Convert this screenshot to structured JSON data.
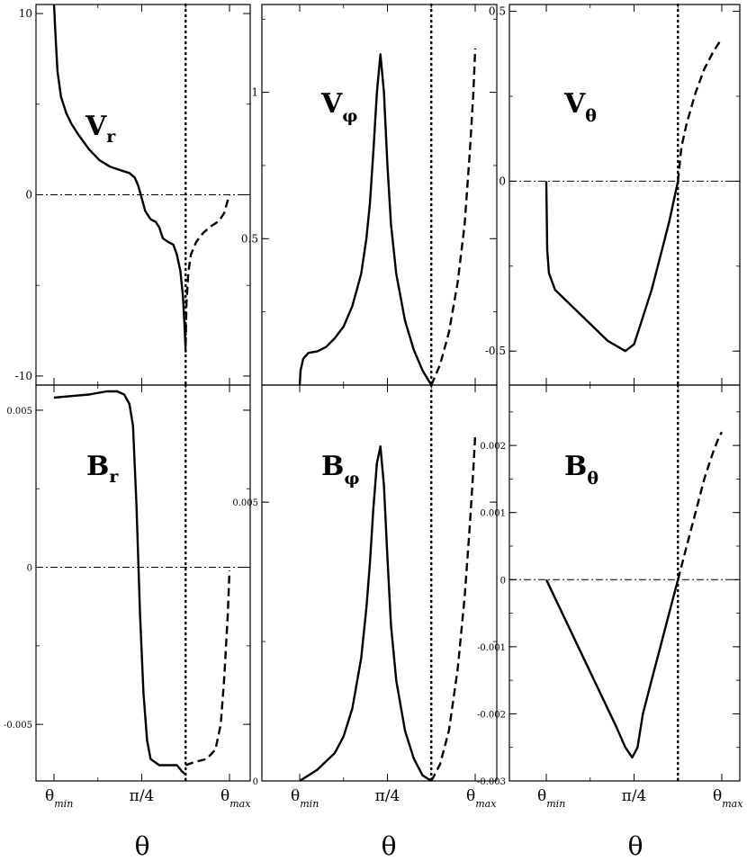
{
  "chart_data": [
    {
      "type": "line",
      "panel": "Vr",
      "label": "V",
      "label_sub": "r",
      "ylim": [
        -10.5,
        10.5
      ],
      "yticks": [
        {
          "v": 10,
          "t": "10"
        },
        {
          "v": 0,
          "t": "0"
        },
        {
          "v": -10,
          "t": "-10"
        }
      ],
      "ref_line": 0,
      "series": [
        {
          "style": "solid",
          "points": [
            [
              0.0,
              10.5
            ],
            [
              0.01,
              8.5
            ],
            [
              0.02,
              6.8
            ],
            [
              0.04,
              5.4
            ],
            [
              0.07,
              4.5
            ],
            [
              0.1,
              3.9
            ],
            [
              0.14,
              3.3
            ],
            [
              0.2,
              2.5
            ],
            [
              0.26,
              1.9
            ],
            [
              0.32,
              1.55
            ],
            [
              0.38,
              1.35
            ],
            [
              0.43,
              1.2
            ],
            [
              0.46,
              0.95
            ],
            [
              0.48,
              0.5
            ],
            [
              0.5,
              -0.2
            ],
            [
              0.52,
              -0.9
            ],
            [
              0.55,
              -1.35
            ],
            [
              0.58,
              -1.5
            ],
            [
              0.6,
              -1.8
            ],
            [
              0.62,
              -2.4
            ],
            [
              0.65,
              -2.6
            ],
            [
              0.68,
              -2.75
            ],
            [
              0.7,
              -3.3
            ],
            [
              0.72,
              -4.2
            ],
            [
              0.735,
              -5.6
            ],
            [
              0.745,
              -7.5
            ],
            [
              0.75,
              -8.7
            ]
          ]
        },
        {
          "style": "dashed",
          "points": [
            [
              0.75,
              -8.3
            ],
            [
              0.755,
              -6.0
            ],
            [
              0.765,
              -4.3
            ],
            [
              0.78,
              -3.3
            ],
            [
              0.81,
              -2.6
            ],
            [
              0.85,
              -2.1
            ],
            [
              0.9,
              -1.7
            ],
            [
              0.94,
              -1.45
            ],
            [
              0.97,
              -1.0
            ],
            [
              0.99,
              -0.3
            ],
            [
              1.0,
              0.0
            ]
          ]
        }
      ]
    },
    {
      "type": "line",
      "panel": "Vphi",
      "label": "V",
      "label_sub": "φ",
      "ylim": [
        0,
        1.3
      ],
      "yticks": [
        {
          "v": 1,
          "t": "1"
        },
        {
          "v": 0.5,
          "t": "0.5"
        }
      ],
      "ref_line": null,
      "series": [
        {
          "style": "solid",
          "points": [
            [
              0.0,
              0.0
            ],
            [
              0.005,
              0.05
            ],
            [
              0.02,
              0.09
            ],
            [
              0.05,
              0.11
            ],
            [
              0.1,
              0.115
            ],
            [
              0.15,
              0.13
            ],
            [
              0.2,
              0.16
            ],
            [
              0.25,
              0.2
            ],
            [
              0.3,
              0.27
            ],
            [
              0.35,
              0.38
            ],
            [
              0.38,
              0.5
            ],
            [
              0.4,
              0.62
            ],
            [
              0.42,
              0.8
            ],
            [
              0.44,
              1.0
            ],
            [
              0.46,
              1.13
            ],
            [
              0.48,
              1.0
            ],
            [
              0.5,
              0.75
            ],
            [
              0.52,
              0.55
            ],
            [
              0.55,
              0.38
            ],
            [
              0.6,
              0.22
            ],
            [
              0.65,
              0.12
            ],
            [
              0.7,
              0.05
            ],
            [
              0.75,
              0.0
            ]
          ]
        },
        {
          "style": "dashed",
          "points": [
            [
              0.75,
              0.0
            ],
            [
              0.8,
              0.07
            ],
            [
              0.85,
              0.18
            ],
            [
              0.9,
              0.35
            ],
            [
              0.94,
              0.55
            ],
            [
              0.97,
              0.8
            ],
            [
              0.99,
              1.0
            ],
            [
              1.0,
              1.15
            ]
          ]
        }
      ]
    },
    {
      "type": "line",
      "panel": "Vtheta",
      "label": "V",
      "label_sub": "θ",
      "ylim": [
        -0.6,
        0.52
      ],
      "yticks": [
        {
          "v": 0.5,
          "t": "0.5"
        },
        {
          "v": 0,
          "t": "0"
        },
        {
          "v": -0.5,
          "t": "-0.5"
        }
      ],
      "ref_line": 0,
      "series": [
        {
          "style": "solid",
          "points": [
            [
              0.0,
              0.0
            ],
            [
              0.005,
              -0.2
            ],
            [
              0.015,
              -0.27
            ],
            [
              0.05,
              -0.32
            ],
            [
              0.15,
              -0.37
            ],
            [
              0.25,
              -0.42
            ],
            [
              0.35,
              -0.47
            ],
            [
              0.45,
              -0.5
            ],
            [
              0.5,
              -0.48
            ],
            [
              0.55,
              -0.4
            ],
            [
              0.6,
              -0.32
            ],
            [
              0.65,
              -0.22
            ],
            [
              0.7,
              -0.12
            ],
            [
              0.75,
              0.0
            ]
          ]
        },
        {
          "style": "dashed",
          "points": [
            [
              0.75,
              0.0
            ],
            [
              0.77,
              0.1
            ],
            [
              0.8,
              0.17
            ],
            [
              0.85,
              0.26
            ],
            [
              0.9,
              0.33
            ],
            [
              0.95,
              0.38
            ],
            [
              1.0,
              0.42
            ]
          ]
        }
      ]
    },
    {
      "type": "line",
      "panel": "Br",
      "label": "B",
      "label_sub": "r",
      "ylim": [
        -0.0068,
        0.0058
      ],
      "yticks": [
        {
          "v": 0.005,
          "t": "0.005"
        },
        {
          "v": 0,
          "t": "0"
        },
        {
          "v": -0.005,
          "t": "-0.005"
        }
      ],
      "ref_line": 0,
      "series": [
        {
          "style": "solid",
          "points": [
            [
              0.0,
              0.0054
            ],
            [
              0.1,
              0.00545
            ],
            [
              0.2,
              0.0055
            ],
            [
              0.3,
              0.0056
            ],
            [
              0.36,
              0.0056
            ],
            [
              0.4,
              0.0055
            ],
            [
              0.43,
              0.0052
            ],
            [
              0.45,
              0.0045
            ],
            [
              0.47,
              0.002
            ],
            [
              0.49,
              -0.0015
            ],
            [
              0.51,
              -0.004
            ],
            [
              0.53,
              -0.0055
            ],
            [
              0.55,
              -0.0061
            ],
            [
              0.6,
              -0.0063
            ],
            [
              0.65,
              -0.0063
            ],
            [
              0.7,
              -0.0063
            ],
            [
              0.73,
              -0.0065
            ],
            [
              0.75,
              -0.0066
            ]
          ]
        },
        {
          "style": "dashed",
          "points": [
            [
              0.75,
              -0.0063
            ],
            [
              0.8,
              -0.0062
            ],
            [
              0.87,
              -0.0061
            ],
            [
              0.92,
              -0.0058
            ],
            [
              0.95,
              -0.005
            ],
            [
              0.97,
              -0.0035
            ],
            [
              0.99,
              -0.0015
            ],
            [
              1.0,
              -0.0001
            ]
          ]
        }
      ]
    },
    {
      "type": "line",
      "panel": "Bphi",
      "label": "B",
      "label_sub": "φ",
      "ylim": [
        0,
        0.0071
      ],
      "yticks": [
        {
          "v": 0.005,
          "t": "0.005"
        },
        {
          "v": 0,
          "t": "0"
        }
      ],
      "ref_line": null,
      "series": [
        {
          "style": "solid",
          "points": [
            [
              0.0,
              0.0
            ],
            [
              0.05,
              0.0001
            ],
            [
              0.1,
              0.0002
            ],
            [
              0.15,
              0.00035
            ],
            [
              0.2,
              0.0005
            ],
            [
              0.25,
              0.0008
            ],
            [
              0.3,
              0.0013
            ],
            [
              0.35,
              0.0022
            ],
            [
              0.38,
              0.0031
            ],
            [
              0.4,
              0.0039
            ],
            [
              0.42,
              0.0049
            ],
            [
              0.44,
              0.0057
            ],
            [
              0.46,
              0.006
            ],
            [
              0.48,
              0.0053
            ],
            [
              0.5,
              0.004
            ],
            [
              0.52,
              0.0028
            ],
            [
              0.55,
              0.0018
            ],
            [
              0.6,
              0.0009
            ],
            [
              0.65,
              0.0004
            ],
            [
              0.7,
              0.0001
            ],
            [
              0.75,
              0.0
            ]
          ]
        },
        {
          "style": "dashed",
          "points": [
            [
              0.75,
              0.0
            ],
            [
              0.8,
              0.0003
            ],
            [
              0.85,
              0.0009
            ],
            [
              0.9,
              0.002
            ],
            [
              0.94,
              0.0033
            ],
            [
              0.97,
              0.0046
            ],
            [
              0.99,
              0.0056
            ],
            [
              1.0,
              0.0062
            ]
          ]
        }
      ]
    },
    {
      "type": "line",
      "panel": "Btheta",
      "label": "B",
      "label_sub": "θ",
      "ylim": [
        -0.003,
        0.0029
      ],
      "yticks": [
        {
          "v": 0.002,
          "t": "0.002"
        },
        {
          "v": 0.001,
          "t": "0.001"
        },
        {
          "v": 0,
          "t": "0"
        },
        {
          "v": -0.001,
          "t": "-0.001"
        },
        {
          "v": -0.002,
          "t": "-0.002"
        },
        {
          "v": -0.003,
          "t": "-0.003"
        }
      ],
      "ref_line": 0,
      "series": [
        {
          "style": "solid",
          "points": [
            [
              0.0,
              0.0
            ],
            [
              0.1,
              -0.00055
            ],
            [
              0.2,
              -0.0011
            ],
            [
              0.3,
              -0.00165
            ],
            [
              0.4,
              -0.0022
            ],
            [
              0.45,
              -0.0025
            ],
            [
              0.49,
              -0.00265
            ],
            [
              0.52,
              -0.0025
            ],
            [
              0.55,
              -0.002
            ],
            [
              0.6,
              -0.0015
            ],
            [
              0.65,
              -0.001
            ],
            [
              0.7,
              -0.0005
            ],
            [
              0.75,
              0.0
            ]
          ]
        },
        {
          "style": "dashed",
          "points": [
            [
              0.75,
              0.0
            ],
            [
              0.8,
              0.0005
            ],
            [
              0.85,
              0.001
            ],
            [
              0.9,
              0.0015
            ],
            [
              0.95,
              0.0019
            ],
            [
              0.98,
              0.0021
            ],
            [
              1.0,
              0.0022
            ]
          ]
        }
      ]
    }
  ],
  "x_axis": {
    "ticks": [
      {
        "pos": 0.0,
        "main": "θ",
        "sub": "min"
      },
      {
        "pos": 0.5,
        "main": "π/4",
        "sub": ""
      },
      {
        "pos": 1.0,
        "main": "θ",
        "sub": "max"
      }
    ],
    "label": "θ"
  }
}
